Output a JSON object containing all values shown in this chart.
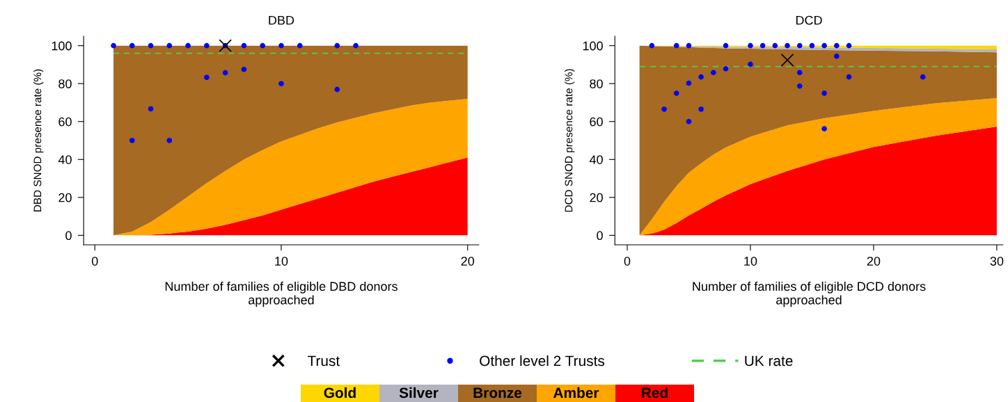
{
  "chart_data": [
    {
      "type": "area",
      "stacked": true,
      "title": "DBD",
      "xlabel": "Number of families of eligible DBD donors\napproached",
      "ylabel": "DBD SNOD presence rate (%)",
      "xlim": [
        -0.6,
        20.6
      ],
      "xticks": [
        0,
        10,
        20
      ],
      "ylim": [
        -5,
        105
      ],
      "yticks": [
        0,
        20,
        40,
        60,
        80,
        100
      ],
      "grid": false,
      "x": [
        1,
        2,
        3,
        4,
        5,
        6,
        7,
        8,
        9,
        10,
        11,
        12,
        13,
        14,
        15,
        16,
        17,
        18,
        19,
        20
      ],
      "series": [
        {
          "color": "#ff0000",
          "values": [
            0,
            0,
            0.3,
            1,
            2,
            3.5,
            5.5,
            8,
            10.5,
            13.5,
            16.5,
            19.5,
            22.5,
            25.5,
            28.5,
            31,
            33.5,
            36,
            38.5,
            41
          ]
        },
        {
          "color": "#ffa500",
          "values": [
            0,
            2,
            6.7,
            12.5,
            18.5,
            24,
            28.5,
            32,
            34.5,
            36,
            36.5,
            37,
            37,
            36.5,
            36,
            35.5,
            35,
            34,
            32.5,
            31
          ]
        },
        {
          "color": "#a66a22",
          "values": [
            100,
            98,
            93,
            86.5,
            79.5,
            72.5,
            66,
            60,
            55,
            50.5,
            47,
            43.5,
            40.5,
            38,
            35.5,
            33.5,
            31.5,
            30,
            29,
            28
          ]
        },
        {
          "type": "scatter",
          "marker": "circle",
          "color": "#0000ff",
          "x": [
            1,
            2,
            3,
            4,
            5,
            6,
            7,
            8,
            9,
            10,
            11,
            13,
            14,
            2,
            3,
            4,
            6,
            7,
            8,
            10,
            13
          ],
          "values": [
            100,
            100,
            100,
            100,
            100,
            100,
            100,
            100,
            100,
            100,
            100,
            100,
            100,
            50,
            66.7,
            50,
            83.3,
            85.7,
            87.5,
            80,
            76.9
          ]
        },
        {
          "type": "scatter",
          "marker": "cross",
          "color": "#000000",
          "x": [
            7
          ],
          "values": [
            100
          ]
        }
      ],
      "ref_lines": [
        {
          "axis": "y",
          "value": 96,
          "color": "#55cc55",
          "line_style": "dashed"
        }
      ]
    },
    {
      "type": "area",
      "stacked": true,
      "title": "DCD",
      "xlabel": "Number of families of eligible DCD donors\napproached",
      "ylabel": "DCD SNOD presence rate (%)",
      "xlim": [
        -1,
        30.5
      ],
      "xticks": [
        0,
        10,
        20,
        30
      ],
      "ylim": [
        -5,
        105
      ],
      "yticks": [
        0,
        20,
        40,
        60,
        80,
        100
      ],
      "grid": false,
      "legend": "bottom",
      "x": [
        1,
        2,
        3,
        4,
        5,
        6,
        7,
        8,
        10,
        13,
        16,
        20,
        25,
        30
      ],
      "series": [
        {
          "name": "Red",
          "color": "#ff0000",
          "values": [
            0,
            1,
            3,
            6.5,
            10.5,
            14,
            17.7,
            21,
            27,
            34,
            40,
            46.6,
            52.5,
            57.3
          ]
        },
        {
          "name": "Amber",
          "color": "#ffa500",
          "values": [
            0,
            7.5,
            14.7,
            19.5,
            22.5,
            24,
            24.9,
            25.3,
            25,
            24,
            21.7,
            19,
            17.1,
            15.1
          ]
        },
        {
          "name": "Bronze",
          "color": "#a66a22",
          "values": [
            100,
            91.3,
            81.9,
            73.4,
            66.2,
            61,
            56.2,
            52.3,
            46.4,
            40,
            36,
            31.8,
            27.4,
            24.1
          ]
        },
        {
          "name": "Silver",
          "color": "#b4b4c0",
          "values": [
            0,
            0.1,
            0.2,
            0.4,
            0.5,
            0.6,
            0.7,
            0.8,
            0.9,
            1.2,
            1.3,
            1.4,
            1.4,
            1.5
          ]
        },
        {
          "name": "Gold",
          "color": "#ffd700",
          "values": [
            0,
            0.1,
            0.2,
            0.2,
            0.3,
            0.4,
            0.5,
            0.6,
            0.7,
            0.8,
            1,
            1.2,
            1.6,
            2
          ]
        },
        {
          "name": "Other level 2 Trusts",
          "type": "scatter",
          "marker": "circle",
          "color": "#0000ff",
          "x": [
            2,
            4,
            5,
            8,
            10,
            11,
            12,
            13,
            14,
            15,
            16,
            17,
            18,
            17,
            8,
            10,
            7,
            6,
            5,
            4,
            3,
            6,
            5,
            14,
            14,
            16,
            18,
            24,
            16
          ],
          "values": [
            100,
            100,
            100,
            100,
            100,
            100,
            100,
            100,
            100,
            100,
            100,
            100,
            100,
            94.4,
            87.8,
            90.2,
            85.8,
            83.5,
            80.2,
            74.9,
            66.5,
            66.5,
            60,
            85.8,
            78.7,
            74.9,
            83.5,
            83.5,
            56.2
          ]
        },
        {
          "name": "Trust",
          "type": "scatter",
          "marker": "cross",
          "color": "#000000",
          "x": [
            13
          ],
          "values": [
            92.4
          ]
        }
      ],
      "ref_lines": [
        {
          "axis": "y",
          "value": 89,
          "label": "UK rate",
          "color": "#55cc55",
          "line_style": "dashed"
        }
      ]
    }
  ]
}
